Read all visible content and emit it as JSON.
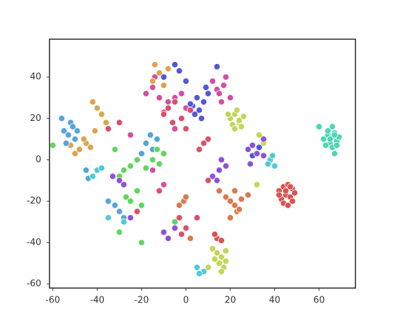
{
  "chart_data": {
    "type": "scatter",
    "xlim": [
      -61.5,
      76.4
    ],
    "ylim": [
      -62,
      58.3
    ],
    "xticks": [
      -60,
      -40,
      -20,
      0,
      20,
      40,
      60
    ],
    "yticks": [
      -60,
      -40,
      -20,
      0,
      20,
      40
    ],
    "grid": false,
    "series": [
      {
        "color": "#4dd6b4",
        "x": [
          62,
          64,
          66,
          68,
          65,
          67,
          63,
          69,
          66,
          64,
          68,
          66,
          67,
          65,
          60,
          67
        ],
        "y": [
          10,
          12,
          11,
          9,
          8,
          13,
          7,
          11,
          6,
          14,
          7,
          16,
          3,
          10,
          16,
          12
        ]
      },
      {
        "color": "#d9534f",
        "x": [
          42,
          44,
          46,
          48,
          45,
          47,
          43,
          49,
          44,
          46,
          48,
          42,
          45,
          14,
          16,
          13,
          47
        ],
        "y": [
          -15,
          -13,
          -12,
          -14,
          -17,
          -18,
          -19,
          -16,
          -21,
          -22,
          -20,
          -17,
          -15,
          -38,
          -39,
          -36,
          -13
        ]
      },
      {
        "color": "#c2d659",
        "x": [
          20,
          22,
          24,
          26,
          21,
          23,
          25,
          19,
          22,
          24,
          14,
          16,
          18,
          15,
          17,
          13,
          12,
          18,
          16,
          10,
          35,
          32,
          33
        ],
        "y": [
          20,
          22,
          18,
          21,
          17,
          24,
          16,
          22,
          15,
          19,
          -45,
          -47,
          -44,
          -50,
          -52,
          -48,
          -43,
          -49,
          -54,
          -52,
          8,
          -12,
          12
        ]
      },
      {
        "color": "#5256dc",
        "x": [
          5,
          8,
          10,
          3,
          6,
          9,
          12,
          4,
          7,
          2,
          -8,
          -5,
          -10,
          -3,
          0,
          14,
          30,
          28,
          33
        ],
        "y": [
          30,
          28,
          32,
          26,
          24,
          35,
          38,
          22,
          20,
          27,
          44,
          46,
          40,
          43,
          38,
          45,
          2,
          5,
          6
        ]
      },
      {
        "color": "#d34fa3",
        "x": [
          14,
          17,
          20,
          16,
          18,
          15,
          12,
          -15,
          -12,
          -18,
          -8,
          -14,
          -10,
          -5,
          -2,
          0,
          -25,
          -5,
          -15,
          -10
        ],
        "y": [
          34,
          36,
          30,
          28,
          40,
          32,
          38,
          35,
          30,
          32,
          28,
          40,
          23,
          30,
          32,
          25,
          12,
          15,
          -5,
          -12
        ]
      },
      {
        "color": "#d9a650",
        "x": [
          -12,
          -15,
          -10,
          -8,
          -14,
          -40,
          -38,
          -42,
          -36,
          -48,
          -45,
          -50,
          -43,
          -46,
          -52,
          -41
        ],
        "y": [
          42,
          38,
          36,
          44,
          46,
          25,
          22,
          28,
          18,
          5,
          8,
          3,
          6,
          10,
          7,
          14
        ]
      },
      {
        "color": "#54a5d9",
        "x": [
          -55,
          -52,
          -50,
          -54,
          -53,
          -51,
          -56,
          -49,
          -18,
          -15,
          -20,
          -13,
          -16,
          -30,
          -28,
          -32,
          -35,
          -45,
          -44
        ],
        "y": [
          14,
          18,
          10,
          8,
          12,
          16,
          20,
          14,
          8,
          5,
          3,
          10,
          12,
          -25,
          -28,
          -22,
          -20,
          -5,
          -9
        ]
      },
      {
        "color": "#5fd65f",
        "x": [
          -15,
          -12,
          -10,
          -18,
          -13,
          -28,
          -25,
          -30,
          -22,
          -27,
          -25,
          -22,
          -20,
          -32,
          -60,
          -5,
          -20,
          -30,
          -8
        ],
        "y": [
          0,
          -2,
          3,
          -4,
          5,
          -5,
          -3,
          -8,
          0,
          -18,
          -20,
          -15,
          -22,
          5,
          7,
          -30,
          -40,
          -35,
          -38
        ]
      },
      {
        "color": "#8e52d9",
        "x": [
          28,
          30,
          32,
          35,
          29,
          15,
          12,
          18,
          14,
          16,
          -30,
          -28,
          -33,
          -10,
          -8,
          -5,
          35,
          -25
        ],
        "y": [
          5,
          7,
          3,
          2,
          -2,
          -5,
          -8,
          -3,
          -10,
          0,
          -10,
          -12,
          -8,
          -35,
          -38,
          -33,
          10,
          -28
        ]
      },
      {
        "color": "#d9506b",
        "x": [
          -8,
          -5,
          -2,
          -10,
          -6,
          0,
          2,
          8,
          6,
          10,
          -35,
          -30,
          -3,
          0,
          -2,
          10,
          5,
          -12,
          -22
        ],
        "y": [
          25,
          28,
          20,
          22,
          18,
          15,
          24,
          8,
          5,
          10,
          15,
          18,
          -28,
          -33,
          -36,
          -10,
          -28,
          -15,
          -25
        ]
      },
      {
        "color": "#d97a50",
        "x": [
          18,
          20,
          22,
          25,
          23,
          28,
          15,
          20,
          24,
          -3,
          -1,
          0,
          2,
          22
        ],
        "y": [
          -18,
          -20,
          -22,
          -19,
          -25,
          -17,
          -15,
          -28,
          -24,
          -22,
          -20,
          -18,
          -38,
          -15
        ]
      },
      {
        "color": "#4fcad6",
        "x": [
          38,
          40,
          37,
          39,
          -40,
          -42,
          -38,
          5,
          8,
          6,
          -28,
          -35
        ],
        "y": [
          0,
          -3,
          -2,
          2,
          -5,
          -8,
          -4,
          -52,
          -54,
          -55,
          -30,
          -28
        ]
      }
    ]
  }
}
